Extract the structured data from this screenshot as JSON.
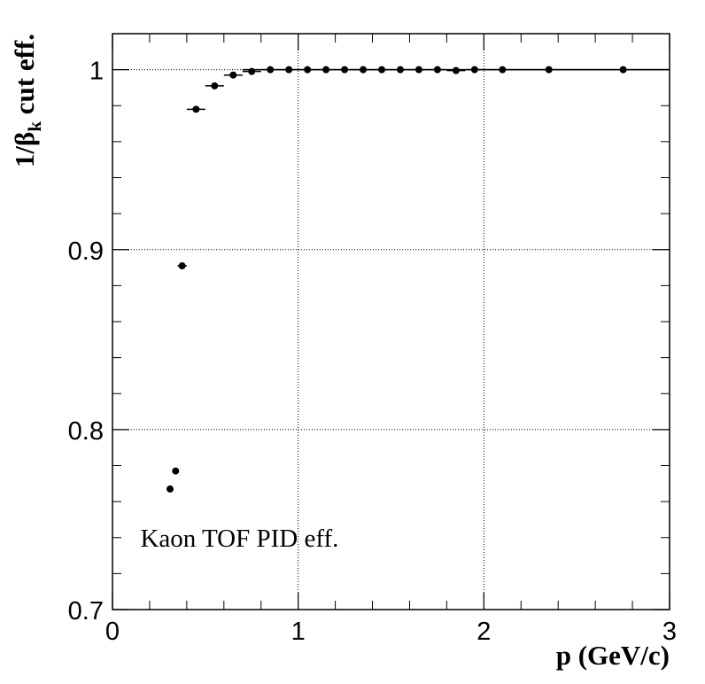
{
  "chart_data": {
    "type": "scatter",
    "xlabel": "p (GeV/c)",
    "ylabel_parts": {
      "pre": "1/β",
      "sub": "k",
      "post": " cut eff."
    },
    "annotation": "Kaon TOF PID eff.",
    "xlim": [
      0,
      3
    ],
    "ylim": [
      0.7,
      1.02
    ],
    "x_ticks": [
      0,
      1,
      2,
      3
    ],
    "y_ticks": [
      0.7,
      0.8,
      0.9,
      1
    ],
    "x_tick_labels": [
      "0",
      "1",
      "2",
      "3"
    ],
    "y_tick_labels": [
      "0.7",
      "0.8",
      "0.9",
      "1"
    ],
    "grid": true,
    "reference_line_y": 1.0,
    "series": [
      {
        "points": [
          {
            "x": 0.31,
            "y": 0.767,
            "xerr": 0.005
          },
          {
            "x": 0.34,
            "y": 0.777,
            "xerr": 0.005
          },
          {
            "x": 0.375,
            "y": 0.891,
            "xerr": 0.025
          },
          {
            "x": 0.45,
            "y": 0.978,
            "xerr": 0.05
          },
          {
            "x": 0.55,
            "y": 0.991,
            "xerr": 0.05
          },
          {
            "x": 0.65,
            "y": 0.997,
            "xerr": 0.05
          },
          {
            "x": 0.75,
            "y": 0.999,
            "xerr": 0.05
          },
          {
            "x": 0.85,
            "y": 1.0,
            "xerr": 0.05
          },
          {
            "x": 0.95,
            "y": 1.0,
            "xerr": 0.05
          },
          {
            "x": 1.05,
            "y": 1.0,
            "xerr": 0.05
          },
          {
            "x": 1.15,
            "y": 1.0,
            "xerr": 0.05
          },
          {
            "x": 1.25,
            "y": 1.0,
            "xerr": 0.05
          },
          {
            "x": 1.35,
            "y": 1.0,
            "xerr": 0.05
          },
          {
            "x": 1.45,
            "y": 1.0,
            "xerr": 0.05
          },
          {
            "x": 1.55,
            "y": 1.0,
            "xerr": 0.05
          },
          {
            "x": 1.65,
            "y": 1.0,
            "xerr": 0.05
          },
          {
            "x": 1.75,
            "y": 1.0,
            "xerr": 0.05
          },
          {
            "x": 1.85,
            "y": 0.9995,
            "xerr": 0.05
          },
          {
            "x": 1.95,
            "y": 1.0,
            "xerr": 0.05
          },
          {
            "x": 2.1,
            "y": 1.0,
            "xerr": 0.1
          },
          {
            "x": 2.35,
            "y": 1.0,
            "xerr": 0.15
          },
          {
            "x": 2.75,
            "y": 1.0,
            "xerr": 0.25
          }
        ],
        "color": "#000000"
      }
    ]
  }
}
